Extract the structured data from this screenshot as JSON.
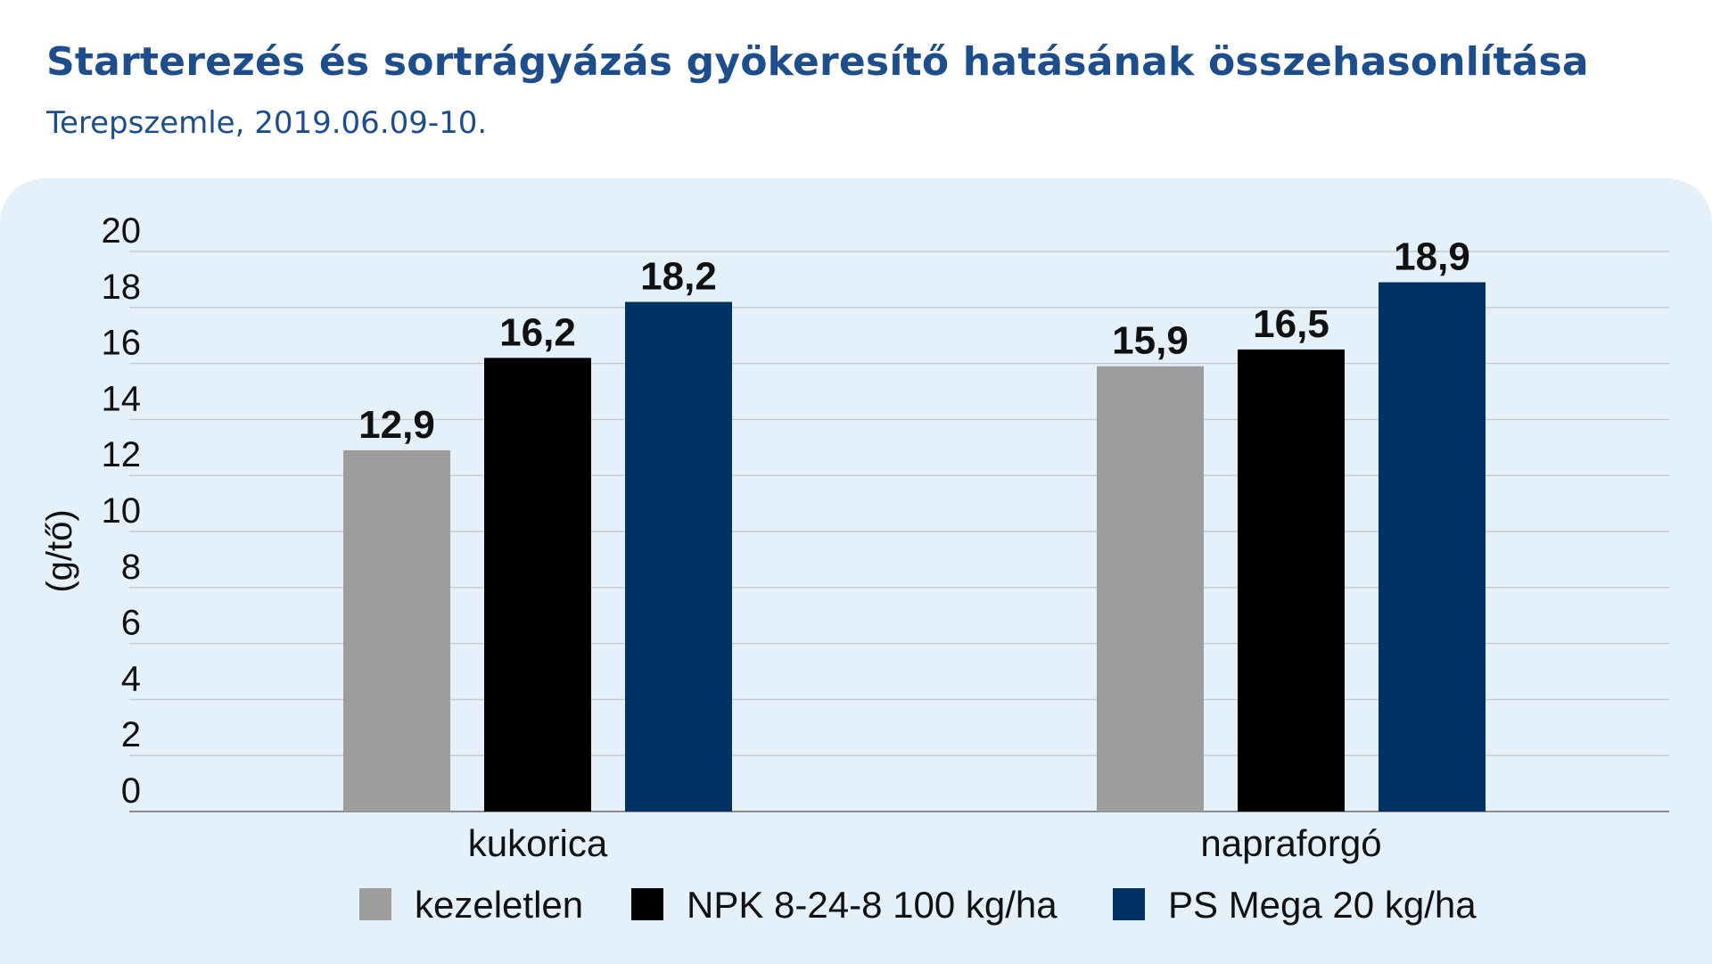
{
  "chart_data": {
    "type": "bar",
    "title": "Starterezés és sortrágyázás gyökeresítő hatásának összehasonlítása",
    "subtitle": "Terepszemle, 2019.06.09-10.",
    "ylabel": "(g/tő)",
    "xlabel": "",
    "ylim": [
      0,
      20
    ],
    "yticks": [
      0,
      2,
      4,
      6,
      8,
      10,
      12,
      14,
      16,
      18,
      20
    ],
    "categories": [
      "kukorica",
      "napraforgó"
    ],
    "series": [
      {
        "name": "kezeletlen",
        "values": [
          12.9,
          15.9
        ],
        "labels": [
          "12,9",
          "15,9"
        ],
        "color": "#9d9d9d"
      },
      {
        "name": "NPK 8-24-8 100 kg/ha",
        "values": [
          16.2,
          16.5
        ],
        "labels": [
          "16,2",
          "16,5"
        ],
        "color": "#000000"
      },
      {
        "name": "PS Mega 20 kg/ha",
        "values": [
          18.2,
          18.9
        ],
        "labels": [
          "18,2",
          "18,9"
        ],
        "color": "#003263"
      }
    ],
    "grid": true,
    "legend_position": "bottom"
  }
}
